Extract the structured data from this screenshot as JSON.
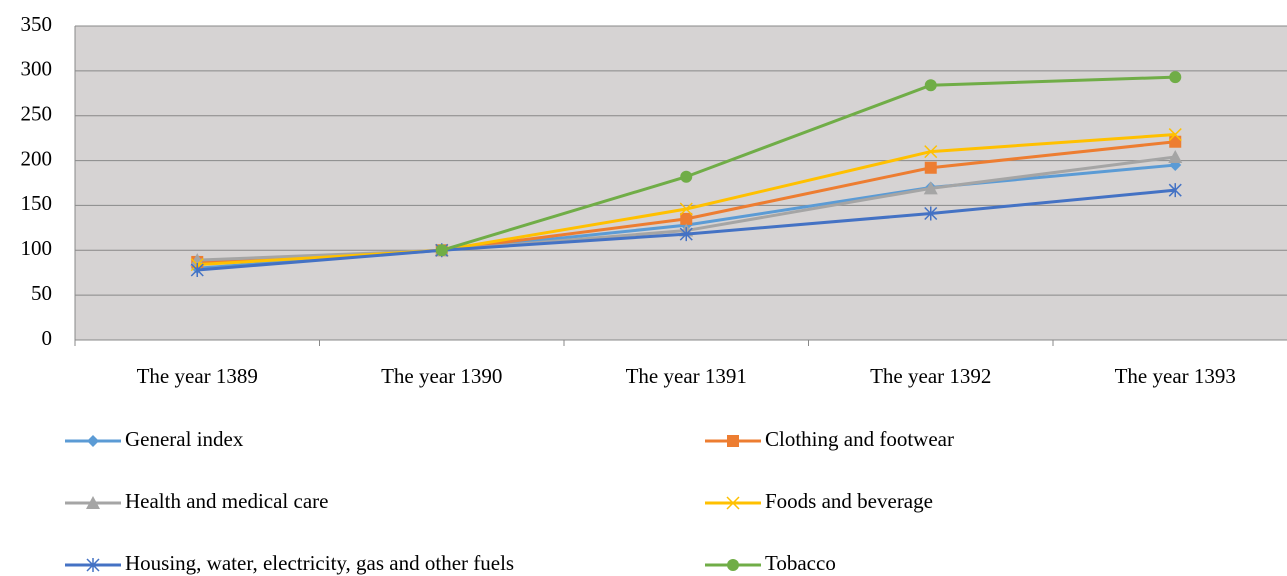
{
  "chart_data": {
    "type": "line",
    "categories": [
      "The year 1389",
      "The year 1390",
      "The year 1391",
      "The year 1392",
      "The year 1393"
    ],
    "series": [
      {
        "name": "General index",
        "color": "#5b9bd5",
        "marker": "diamond",
        "values": [
          80,
          100,
          128,
          170,
          195
        ]
      },
      {
        "name": "Clothing and footwear",
        "color": "#ed7d31",
        "marker": "square",
        "values": [
          87,
          100,
          135,
          192,
          221
        ]
      },
      {
        "name": "Health and medical care",
        "color": "#a5a5a5",
        "marker": "triangle",
        "values": [
          89,
          100,
          122,
          169,
          204
        ]
      },
      {
        "name": "Foods and beverage",
        "color": "#ffc000",
        "marker": "x",
        "values": [
          84,
          100,
          146,
          210,
          229
        ]
      },
      {
        "name": "Housing, water, electricity, gas and other fuels",
        "color": "#4472c4",
        "marker": "star",
        "values": [
          78,
          100,
          118,
          141,
          167
        ]
      },
      {
        "name": "Tobacco",
        "color": "#70ad47",
        "marker": "circle",
        "values": [
          null,
          100,
          182,
          284,
          293
        ]
      }
    ],
    "ylim": [
      0,
      350
    ],
    "yticks": [
      0,
      50,
      100,
      150,
      200,
      250,
      300,
      350
    ],
    "grid": true,
    "plot_background": "#d6d3d3"
  }
}
